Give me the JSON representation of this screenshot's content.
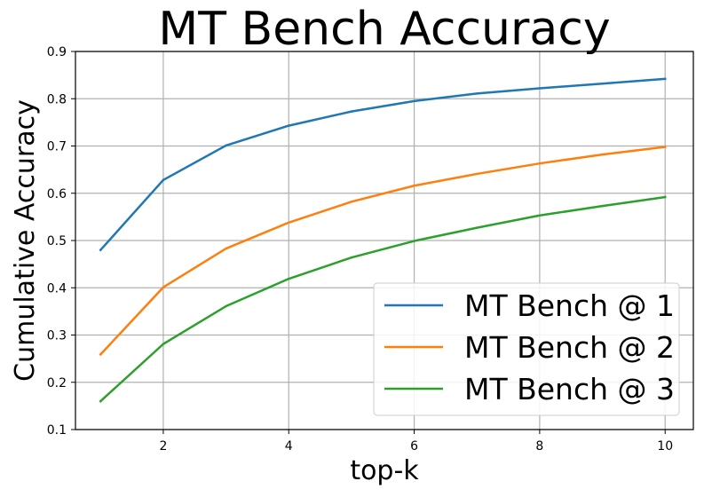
{
  "chart_data": {
    "type": "line",
    "title": "MT Bench Accuracy",
    "xlabel": "top-k",
    "ylabel": "Cumulative Accuracy",
    "xlim": [
      0.6,
      10.45
    ],
    "ylim": [
      0.1,
      0.9
    ],
    "xticks": [
      2,
      4,
      6,
      8,
      10
    ],
    "yticks": [
      0.1,
      0.2,
      0.3,
      0.4,
      0.5,
      0.6,
      0.7,
      0.8,
      0.9
    ],
    "xtick_labels": [
      "2",
      "4",
      "6",
      "8",
      "10"
    ],
    "ytick_labels": [
      "0.1",
      "0.2",
      "0.3",
      "0.4",
      "0.5",
      "0.6",
      "0.7",
      "0.8",
      "0.9"
    ],
    "grid": true,
    "legend_position": "lower-right",
    "x": [
      1,
      2,
      3,
      4,
      5,
      6,
      7,
      8,
      9,
      10
    ],
    "series": [
      {
        "name": "MT Bench @ 1",
        "color": "#1f77b4",
        "values": [
          0.48,
          0.628,
          0.701,
          0.743,
          0.773,
          0.795,
          0.811,
          0.822,
          0.832,
          0.842
        ]
      },
      {
        "name": "MT Bench @ 2",
        "color": "#ff7f0e",
        "values": [
          0.259,
          0.401,
          0.483,
          0.538,
          0.582,
          0.616,
          0.641,
          0.663,
          0.682,
          0.698
        ]
      },
      {
        "name": "MT Bench @ 3",
        "color": "#2ca02c",
        "values": [
          0.16,
          0.281,
          0.361,
          0.419,
          0.464,
          0.499,
          0.527,
          0.553,
          0.573,
          0.592
        ]
      }
    ]
  }
}
